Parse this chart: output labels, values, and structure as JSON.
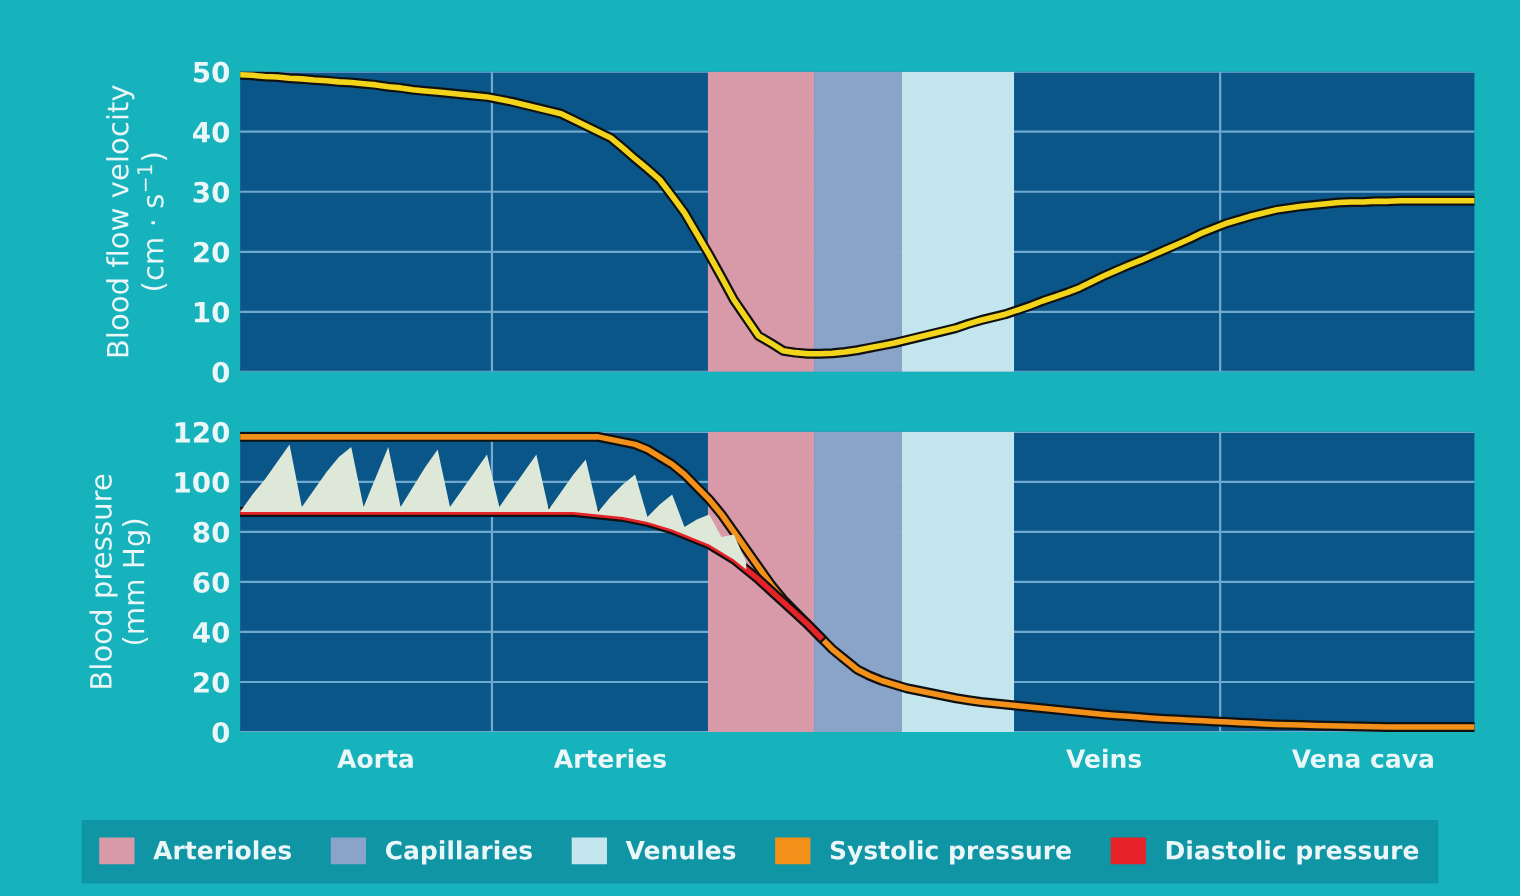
{
  "chart_data": [
    {
      "type": "line",
      "ylabel": "Blood flow velocity\n(cm · s$^{−1}$)",
      "ylim": [
        0,
        50
      ],
      "yticks": [
        0,
        10,
        20,
        30,
        40,
        50
      ],
      "grid": "y",
      "legend": false,
      "categories": [
        null,
        null,
        null,
        null,
        null,
        null,
        null,
        null,
        null,
        null,
        null,
        null,
        null,
        null,
        null,
        null,
        null,
        null,
        null,
        null,
        null,
        null,
        null,
        null,
        null,
        null,
        null,
        null,
        null,
        null,
        null,
        null,
        null,
        null,
        null,
        null,
        null,
        null,
        null,
        null,
        null,
        null,
        null,
        null,
        null,
        null,
        null,
        null,
        null,
        null,
        null,
        null,
        null,
        null,
        null,
        null,
        null,
        null,
        null,
        null,
        null,
        null,
        null,
        null,
        null,
        null,
        null,
        null,
        null,
        null,
        null,
        null,
        null,
        null,
        null,
        null,
        null,
        null,
        null,
        null,
        null,
        null,
        null,
        null,
        null,
        null,
        null,
        null,
        null,
        null,
        null,
        null,
        null,
        null,
        null,
        null,
        null,
        null,
        null,
        null,
        null
      ],
      "series": [
        {
          "color": "#f2d41a",
          "values": [
            49.5,
            49.4,
            49.2,
            49.1,
            48.9,
            48.8,
            48.6,
            48.5,
            48.3,
            48.2,
            48,
            47.8,
            47.5,
            47.3,
            47,
            46.8,
            46.6,
            46.4,
            46.2,
            46,
            45.8,
            45.4,
            45,
            44.5,
            44,
            43.5,
            43,
            42,
            41,
            40,
            39,
            37.3,
            35.5,
            33.8,
            32,
            29.3,
            26.5,
            23,
            19.5,
            15.8,
            12,
            9,
            6,
            4.8,
            3.5,
            3.2,
            3,
            3,
            3.1,
            3.3,
            3.6,
            4,
            4.4,
            4.8,
            5.3,
            5.8,
            6.3,
            6.8,
            7.3,
            8,
            8.6,
            9.1,
            9.6,
            10.3,
            11,
            11.8,
            12.5,
            13.2,
            14,
            15,
            16,
            16.9,
            17.8,
            18.6,
            19.5,
            20.4,
            21.3,
            22.2,
            23.2,
            24,
            24.8,
            25.4,
            26,
            26.5,
            27,
            27.3,
            27.6,
            27.8,
            28,
            28.2,
            28.3,
            28.3,
            28.4,
            28.4,
            28.5,
            28.5,
            28.5,
            28.5,
            28.5,
            28.5,
            28.5
          ]
        }
      ]
    },
    {
      "type": "line",
      "ylabel": "Blood pressure\n(mm Hg)",
      "ylim": [
        0,
        120
      ],
      "yticks": [
        0,
        20,
        40,
        60,
        80,
        100,
        120
      ],
      "categories": [
        null,
        null,
        null,
        null,
        null,
        null,
        null,
        null,
        null,
        null,
        null,
        "Aorta",
        null,
        null,
        null,
        null,
        null,
        null,
        null,
        null,
        null,
        null,
        null,
        null,
        null,
        null,
        null,
        null,
        null,
        null,
        "Arteries",
        null,
        null,
        null,
        null,
        null,
        null,
        null,
        null,
        null,
        null,
        null,
        null,
        null,
        null,
        null,
        null,
        null,
        null,
        null,
        null,
        null,
        null,
        null,
        null,
        null,
        null,
        null,
        null,
        null,
        null,
        null,
        null,
        null,
        null,
        null,
        null,
        null,
        null,
        null,
        "Veins",
        null,
        null,
        null,
        null,
        null,
        null,
        null,
        null,
        null,
        null,
        null,
        null,
        null,
        null,
        null,
        null,
        null,
        null,
        null,
        null,
        "Vena cava",
        null,
        null,
        null,
        null,
        null,
        null,
        null,
        null,
        null
      ],
      "grid": "y",
      "legend": "bottom",
      "annotations": [
        "Arterioles",
        "Capillaries",
        "Venules"
      ],
      "series": [
        {
          "type": "area",
          "color": "#dde8d8",
          "values": [
            88,
            95,
            101,
            108,
            115,
            90,
            97,
            104,
            110,
            114,
            90,
            102,
            114,
            90,
            98,
            106,
            113,
            90,
            97,
            104,
            111,
            90,
            97,
            104,
            111,
            89,
            96,
            103,
            109,
            88,
            94,
            99,
            103,
            86,
            91,
            95,
            82,
            85,
            87,
            78,
            79,
            68,
            null,
            null,
            null,
            null,
            null,
            null,
            null,
            null,
            null,
            null,
            null,
            null,
            null,
            null,
            null,
            null,
            null,
            null,
            null,
            null,
            null,
            null,
            null,
            null,
            null,
            null,
            null,
            null,
            null,
            null,
            null,
            null,
            null,
            null,
            null,
            null,
            null,
            null,
            null,
            null,
            null,
            null,
            null,
            null,
            null,
            null,
            null,
            null,
            null,
            null,
            null,
            null,
            null,
            null,
            null,
            null,
            null,
            null,
            null
          ]
        },
        {
          "name": "Systolic pressure",
          "color": "#f39019",
          "values": [
            118,
            118,
            118,
            118,
            118,
            118,
            118,
            118,
            118,
            118,
            118,
            118,
            118,
            118,
            118,
            118,
            118,
            118,
            118,
            118,
            118,
            118,
            118,
            118,
            118,
            118,
            118,
            118,
            118,
            118,
            117,
            116,
            115,
            113,
            110,
            107,
            103,
            98,
            93,
            87,
            80,
            73,
            66,
            59,
            53,
            48,
            43,
            38,
            33,
            29,
            25,
            22.5,
            20.5,
            19,
            17.5,
            16.5,
            15.5,
            14.5,
            13.5,
            12.7,
            12,
            11.5,
            11,
            10.5,
            10,
            9.5,
            9,
            8.5,
            8,
            7.5,
            7,
            6.6,
            6.3,
            5.9,
            5.5,
            5.2,
            5,
            4.7,
            4.5,
            4.2,
            4,
            3.7,
            3.5,
            3.2,
            3,
            2.9,
            2.8,
            2.6,
            2.5,
            2.4,
            2.3,
            2.2,
            2.1,
            2,
            2,
            2,
            2,
            2,
            2,
            2,
            2
          ]
        },
        {
          "name": "Diastolic pressure",
          "color": "#e52329",
          "values": [
            88,
            88,
            88,
            88,
            88,
            88,
            88,
            88,
            88,
            88,
            88,
            88,
            88,
            88,
            88,
            88,
            88,
            88,
            88,
            88,
            88,
            88,
            88,
            88,
            88,
            88,
            88,
            88,
            87.5,
            87,
            86.5,
            86,
            85,
            84,
            82.5,
            81,
            79,
            77,
            75,
            72,
            69,
            65,
            61,
            56.5,
            52,
            47.5,
            43,
            38,
            null,
            null,
            null,
            null,
            null,
            null,
            null,
            null,
            null,
            null,
            null,
            null,
            null,
            null,
            null,
            null,
            null,
            null,
            null,
            null,
            null,
            null,
            null,
            null,
            null,
            null,
            null,
            null,
            null,
            null,
            null,
            null,
            null,
            null,
            null,
            null,
            null,
            null,
            null,
            null,
            null,
            null,
            null,
            null,
            null,
            null,
            null,
            null,
            null,
            null,
            null,
            null,
            null
          ]
        }
      ]
    }
  ]
}
